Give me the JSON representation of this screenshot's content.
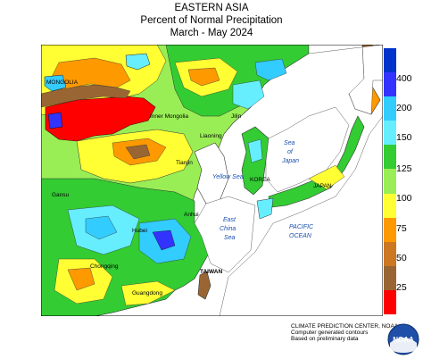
{
  "header": {
    "region": "EASTERN ASIA",
    "subtitle": "Percent of Normal Precipitation",
    "period": "March - May 2024"
  },
  "legend": {
    "ticks": [
      "400",
      "200",
      "150",
      "125",
      "100",
      "75",
      "50",
      "25"
    ],
    "bins": [
      {
        "color": "#0033cc"
      },
      {
        "color": "#3333ff"
      },
      {
        "color": "#33ccff"
      },
      {
        "color": "#66eeff"
      },
      {
        "color": "#33cc33"
      },
      {
        "color": "#99ee55"
      },
      {
        "color": "#ffff33"
      },
      {
        "color": "#ff9900"
      },
      {
        "color": "#cc7722"
      },
      {
        "color": "#996633"
      },
      {
        "color": "#ff0000"
      }
    ]
  },
  "map_labels": {
    "mongolia": "MONGOLIA",
    "inner_mongolia": "Inner Mongolia",
    "jilin": "Jilin",
    "liaoning": "Liaoning",
    "tianjin": "Tianjin",
    "yellow_sea": "Yellow Sea",
    "korea": "KOREA",
    "sea_of_japan_1": "Sea",
    "sea_of_japan_2": "of",
    "sea_of_japan_3": "Japan",
    "japan": "JAPAN",
    "east_china_sea_1": "East",
    "east_china_sea_2": "China",
    "east_china_sea_3": "Sea",
    "pacific_1": "PACIFIC",
    "pacific_2": "OCEAN",
    "taiwan": "TAIWAN",
    "hubei": "Hubei",
    "chongqing": "Chongqing",
    "guangdong": "Guangdong",
    "anhui": "Anhui",
    "gansu": "Gansu"
  },
  "footer": {
    "line1": "CLIMATE PREDICTION CENTER, NOAA",
    "line2": "Computer generated contours",
    "line3": "Based on preliminary data"
  },
  "logo": {
    "text": "NOAA"
  }
}
